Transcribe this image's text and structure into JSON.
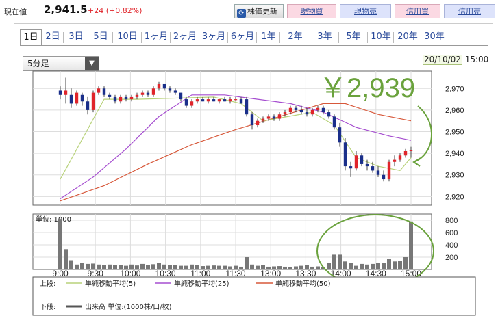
{
  "quote": {
    "label": "現在値",
    "price": "2,941.5",
    "change": "+24 (+0.82%)"
  },
  "toolbar": {
    "refresh_label": "株価更新",
    "spot_buy": "現物買",
    "spot_sell": "現物売",
    "margin_buy": "信用買",
    "margin_sell": "信用売"
  },
  "range_tabs": [
    "1日",
    "2日",
    "3日",
    "5日",
    "10日",
    "1ヶ月",
    "2ヶ月",
    "3ヶ月",
    "6ヶ月",
    "1年",
    "2年",
    "3年",
    "5年",
    "10年",
    "20年",
    "30年"
  ],
  "active_tab": "1日",
  "interval": {
    "selected": "5分足"
  },
  "timestamp": {
    "date": "20/10/02",
    "time": "15:00"
  },
  "annotation": {
    "text": "￥2,939",
    "color": "#6aa23c"
  },
  "colors": {
    "up": "#e0242a",
    "down": "#1a2f8a",
    "ma5": "#b8d27a",
    "ma25": "#a64fd0",
    "ma50": "#d7583a",
    "volume": "#777777"
  },
  "chart_data": {
    "type": "candlestick",
    "x_ticks": [
      "9:00",
      "9:30",
      "10:00",
      "10:30",
      "11:00",
      "11:30",
      "13:00",
      "13:30",
      "14:00",
      "14:30",
      "15:00"
    ],
    "price_axis": {
      "ticks": [
        "2,970",
        "2,960",
        "2,950",
        "2,940",
        "2,930",
        "2,920"
      ],
      "range": [
        2916,
        2978
      ]
    },
    "volume_axis": {
      "label": "単位: 1000",
      "ticks": [
        "800",
        "600",
        "400",
        "200"
      ],
      "range": [
        0,
        900
      ]
    },
    "candles": [
      [
        2969,
        2971,
        2965,
        2967
      ],
      [
        2967,
        2975,
        2963,
        2969
      ],
      [
        2967,
        2970,
        2961,
        2963
      ],
      [
        2963,
        2969,
        2962,
        2968
      ],
      [
        2967,
        2968,
        2962,
        2964
      ],
      [
        2964,
        2966,
        2958,
        2960
      ],
      [
        2960,
        2969,
        2959,
        2968
      ],
      [
        2968,
        2971,
        2967,
        2970
      ],
      [
        2970,
        2971,
        2966,
        2967
      ],
      [
        2967,
        2968,
        2965,
        2966
      ],
      [
        2966,
        2967,
        2963,
        2964
      ],
      [
        2964,
        2967,
        2963,
        2966
      ],
      [
        2966,
        2967,
        2964,
        2965
      ],
      [
        2965,
        2967,
        2964,
        2966
      ],
      [
        2966,
        2968,
        2965,
        2967
      ],
      [
        2967,
        2969,
        2966,
        2968
      ],
      [
        2968,
        2969,
        2966,
        2967
      ],
      [
        2967,
        2971,
        2966,
        2970
      ],
      [
        2970,
        2973,
        2969,
        2972
      ],
      [
        2972,
        2972,
        2969,
        2970
      ],
      [
        2970,
        2971,
        2968,
        2969
      ],
      [
        2969,
        2970,
        2967,
        2968
      ],
      [
        2968,
        2968,
        2964,
        2965
      ],
      [
        2965,
        2966,
        2961,
        2962
      ],
      [
        2962,
        2965,
        2961,
        2964
      ],
      [
        2964,
        2966,
        2963,
        2965
      ],
      [
        2965,
        2966,
        2964,
        2964
      ],
      [
        2964,
        2966,
        2963,
        2965
      ],
      [
        2965,
        2966,
        2964,
        2964
      ],
      [
        2964,
        2965,
        2963,
        2965
      ],
      [
        2965,
        2966,
        2964,
        2964
      ],
      [
        2964,
        2966,
        2963,
        2965
      ],
      [
        2965,
        2966,
        2964,
        2965
      ],
      [
        2965,
        2966,
        2963,
        2963
      ],
      [
        2965,
        2966,
        2957,
        2958
      ],
      [
        2958,
        2959,
        2951,
        2953
      ],
      [
        2953,
        2956,
        2952,
        2955
      ],
      [
        2955,
        2957,
        2954,
        2956
      ],
      [
        2956,
        2958,
        2955,
        2957
      ],
      [
        2957,
        2958,
        2955,
        2956
      ],
      [
        2956,
        2959,
        2955,
        2958
      ],
      [
        2958,
        2960,
        2957,
        2959
      ],
      [
        2959,
        2962,
        2958,
        2961
      ],
      [
        2961,
        2962,
        2959,
        2960
      ],
      [
        2960,
        2962,
        2958,
        2959
      ],
      [
        2959,
        2961,
        2957,
        2958
      ],
      [
        2958,
        2961,
        2957,
        2960
      ],
      [
        2960,
        2962,
        2959,
        2961
      ],
      [
        2961,
        2962,
        2958,
        2959
      ],
      [
        2959,
        2960,
        2956,
        2957
      ],
      [
        2957,
        2958,
        2951,
        2952
      ],
      [
        2952,
        2954,
        2943,
        2945
      ],
      [
        2945,
        2947,
        2932,
        2934
      ],
      [
        2934,
        2936,
        2929,
        2933
      ],
      [
        2933,
        2941,
        2932,
        2939
      ],
      [
        2939,
        2940,
        2934,
        2935
      ],
      [
        2935,
        2937,
        2932,
        2934
      ],
      [
        2934,
        2936,
        2931,
        2932
      ],
      [
        2932,
        2934,
        2929,
        2930
      ],
      [
        2930,
        2932,
        2927,
        2928
      ],
      [
        2928,
        2937,
        2927,
        2936
      ],
      [
        2936,
        2939,
        2934,
        2937
      ],
      [
        2937,
        2940,
        2936,
        2939
      ],
      [
        2939,
        2942,
        2938,
        2941
      ],
      [
        2941,
        2943,
        2938,
        2941.5
      ]
    ],
    "ma5": [
      [
        0,
        2928
      ],
      [
        8,
        2965
      ],
      [
        14,
        2965
      ],
      [
        28,
        2966
      ],
      [
        33,
        2963
      ],
      [
        37,
        2955
      ],
      [
        46,
        2959
      ],
      [
        50,
        2953
      ],
      [
        54,
        2938
      ],
      [
        58,
        2934
      ],
      [
        62,
        2932
      ],
      [
        64,
        2938
      ]
    ],
    "ma25": [
      [
        0,
        2919
      ],
      [
        6,
        2929
      ],
      [
        12,
        2942
      ],
      [
        18,
        2957
      ],
      [
        24,
        2967
      ],
      [
        30,
        2967
      ],
      [
        36,
        2965
      ],
      [
        42,
        2963
      ],
      [
        48,
        2959
      ],
      [
        54,
        2952
      ],
      [
        60,
        2948
      ],
      [
        64,
        2946
      ]
    ],
    "ma50": [
      [
        0,
        2918
      ],
      [
        8,
        2925
      ],
      [
        16,
        2935
      ],
      [
        24,
        2944
      ],
      [
        32,
        2951
      ],
      [
        40,
        2957
      ],
      [
        48,
        2963
      ],
      [
        52,
        2963
      ],
      [
        58,
        2958
      ],
      [
        64,
        2955
      ]
    ],
    "volume": [
      820,
      330,
      150,
      80,
      110,
      90,
      95,
      80,
      70,
      80,
      70,
      70,
      60,
      80,
      65,
      90,
      70,
      85,
      100,
      80,
      75,
      70,
      60,
      60,
      80,
      70,
      55,
      60,
      65,
      60,
      60,
      50,
      60,
      45,
      200,
      80,
      60,
      70,
      45,
      50,
      55,
      45,
      40,
      50,
      60,
      70,
      45,
      50,
      40,
      110,
      240,
      240,
      130,
      100,
      60,
      90,
      80,
      90,
      110,
      110,
      170,
      130,
      140,
      200,
      780
    ],
    "legend": {
      "upper_label": "上段:",
      "lower_label": "下段:",
      "ma5_name": "単純移動平均(5)",
      "ma25_name": "単純移動平均(25)",
      "ma50_name": "単純移動平均(50)",
      "volume_name": "出来高 単位:(1000株/口/枚)"
    }
  }
}
